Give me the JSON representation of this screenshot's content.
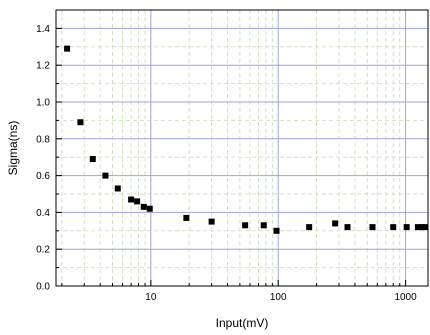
{
  "chart_data": {
    "type": "scatter",
    "title": "",
    "xlabel": "Input(mV)",
    "ylabel": "Sigma(ns)",
    "x_scale": "log",
    "xlim": [
      1.8,
      1500
    ],
    "ylim": [
      0,
      1.5
    ],
    "x_ticks": [
      10,
      100,
      1000
    ],
    "x_tick_labels": [
      "10",
      "100",
      "1000"
    ],
    "y_ticks": [
      0,
      0.2,
      0.4,
      0.6,
      0.8,
      1.0,
      1.2,
      1.4
    ],
    "y_tick_labels": [
      "0.0",
      "0.2",
      "0.4",
      "0.6",
      "0.8",
      "1.0",
      "1.2",
      "1.4"
    ],
    "grid": true,
    "marker": "square",
    "colors": {
      "grid_major": "#9aa6de",
      "grid_minor": "#cfe3c4",
      "marker": "#000000"
    },
    "series": [
      {
        "points": [
          [
            2.2,
            1.29
          ],
          [
            2.8,
            0.89
          ],
          [
            3.5,
            0.69
          ],
          [
            4.4,
            0.6
          ],
          [
            5.5,
            0.53
          ],
          [
            7.0,
            0.47
          ],
          [
            7.8,
            0.46
          ],
          [
            8.8,
            0.43
          ],
          [
            9.8,
            0.42
          ],
          [
            19,
            0.37
          ],
          [
            30,
            0.35
          ],
          [
            55,
            0.33
          ],
          [
            77,
            0.33
          ],
          [
            97,
            0.3
          ],
          [
            175,
            0.32
          ],
          [
            280,
            0.34
          ],
          [
            350,
            0.32
          ],
          [
            550,
            0.32
          ],
          [
            800,
            0.32
          ],
          [
            1020,
            0.32
          ],
          [
            1250,
            0.32
          ],
          [
            1350,
            0.32
          ],
          [
            1430,
            0.32
          ]
        ]
      }
    ]
  }
}
